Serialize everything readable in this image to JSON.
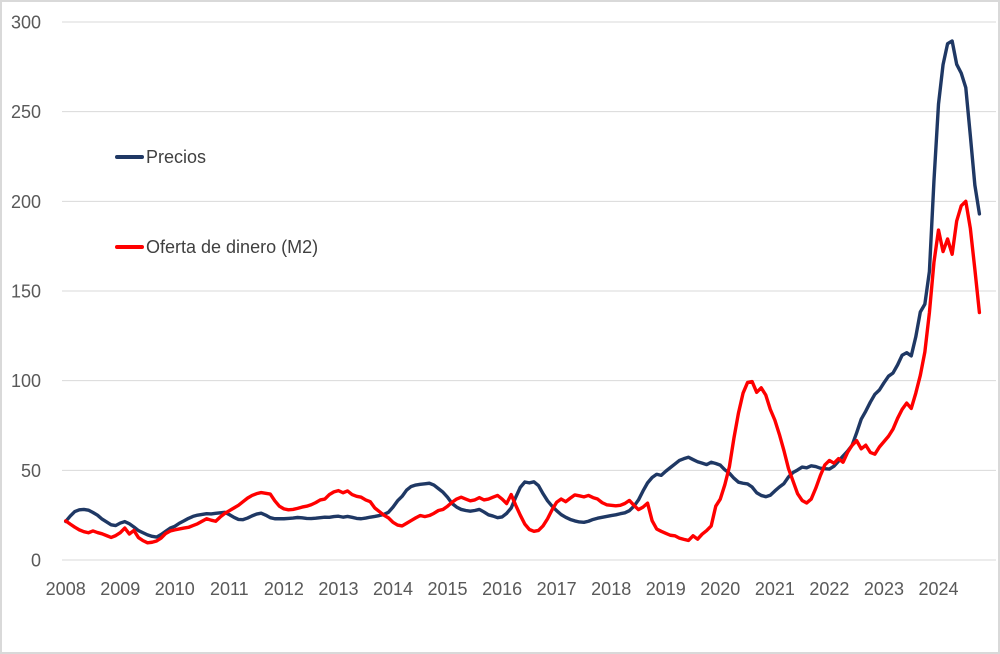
{
  "chart_data": {
    "type": "line",
    "title": "",
    "xlabel": "",
    "ylabel": "",
    "frequency": "monthly",
    "start": "2008-01",
    "end": "2024-10",
    "x_tick_labels": [
      "2008",
      "2009",
      "2010",
      "2011",
      "2012",
      "2013",
      "2014",
      "2015",
      "2016",
      "2017",
      "2018",
      "2019",
      "2020",
      "2021",
      "2022",
      "2023",
      "2024"
    ],
    "y_ticks": [
      0,
      50,
      100,
      150,
      200,
      250,
      300
    ],
    "ylim": [
      0,
      300
    ],
    "grid": "horizontal",
    "legend_position": "inside-top-left",
    "series": [
      {
        "name": "Precios",
        "color": "#1f3864",
        "values": [
          21.5,
          24.5,
          27.0,
          28.0,
          28.2,
          27.8,
          26.5,
          25.0,
          22.8,
          21.2,
          19.6,
          19.2,
          20.6,
          21.4,
          20.2,
          18.4,
          16.4,
          15.2,
          14.0,
          13.2,
          12.8,
          14.2,
          16.0,
          17.8,
          18.8,
          20.5,
          21.8,
          23.2,
          24.3,
          25.0,
          25.4,
          25.8,
          25.7,
          26.0,
          26.3,
          26.6,
          25.3,
          23.8,
          22.6,
          22.5,
          23.4,
          24.6,
          25.6,
          26.1,
          25.0,
          23.6,
          23.0,
          23.0,
          23.0,
          23.2,
          23.4,
          23.7,
          23.5,
          23.2,
          23.1,
          23.3,
          23.6,
          23.9,
          23.8,
          24.2,
          24.4,
          23.9,
          24.3,
          23.8,
          23.2,
          23.0,
          23.4,
          23.9,
          24.3,
          24.8,
          25.4,
          26.6,
          29.5,
          33.0,
          35.5,
          39.0,
          41.0,
          41.8,
          42.2,
          42.5,
          42.8,
          41.8,
          39.8,
          37.8,
          35.0,
          31.5,
          29.5,
          28.2,
          27.6,
          27.2,
          27.6,
          28.2,
          26.8,
          25.2,
          24.5,
          23.6,
          24.0,
          26.0,
          29.0,
          35.0,
          40.5,
          43.5,
          43.0,
          43.6,
          41.5,
          37.0,
          33.0,
          30.0,
          27.5,
          25.3,
          23.8,
          22.6,
          21.8,
          21.2,
          21.0,
          21.6,
          22.6,
          23.3,
          23.8,
          24.3,
          24.8,
          25.2,
          25.8,
          26.3,
          27.5,
          30.0,
          33.5,
          38.5,
          43.0,
          46.0,
          47.8,
          47.2,
          49.5,
          51.5,
          53.5,
          55.5,
          56.5,
          57.3,
          56.0,
          54.8,
          54.0,
          53.2,
          54.5,
          53.8,
          52.9,
          50.3,
          48.4,
          45.6,
          43.4,
          42.8,
          42.4,
          40.7,
          37.5,
          36.0,
          35.3,
          36.1,
          38.5,
          40.7,
          42.6,
          46.3,
          48.8,
          50.2,
          51.8,
          51.4,
          52.5,
          52.1,
          51.2,
          50.9,
          50.7,
          52.3,
          55.1,
          58.0,
          60.7,
          64.0,
          71.0,
          78.5,
          83.0,
          88.0,
          92.4,
          94.8,
          98.8,
          102.5,
          104.3,
          108.8,
          114.2,
          115.6,
          113.8,
          124.4,
          138.3,
          142.7,
          160.9,
          211.4,
          254.2,
          276.2,
          287.9,
          289.4,
          276.4,
          271.5,
          263.4,
          236.7,
          209.0,
          193.0
        ]
      },
      {
        "name": "Oferta de dinero (M2)",
        "color": "#ff0000",
        "values": [
          21.8,
          20.0,
          18.3,
          16.8,
          15.8,
          15.2,
          16.2,
          15.3,
          14.6,
          13.6,
          12.6,
          13.6,
          15.2,
          17.8,
          14.5,
          16.5,
          12.5,
          10.8,
          9.6,
          9.9,
          10.6,
          12.2,
          14.8,
          16.2,
          16.8,
          17.3,
          17.8,
          18.2,
          19.2,
          20.2,
          21.6,
          23.0,
          22.2,
          21.6,
          24.0,
          26.0,
          27.5,
          29.0,
          30.5,
          32.5,
          34.5,
          36.0,
          37.0,
          37.6,
          37.2,
          36.8,
          33.0,
          30.0,
          28.5,
          28.0,
          28.2,
          28.8,
          29.5,
          30.0,
          30.8,
          32.0,
          33.5,
          34.0,
          36.5,
          38.0,
          38.7,
          37.5,
          38.5,
          36.5,
          35.5,
          35.0,
          33.5,
          32.5,
          29.0,
          27.0,
          25.0,
          23.5,
          21.0,
          19.5,
          19.0,
          20.5,
          22.0,
          23.5,
          24.8,
          24.2,
          24.8,
          26.0,
          27.6,
          28.2,
          30.0,
          32.2,
          34.0,
          35.0,
          34.0,
          33.0,
          33.5,
          34.8,
          33.5,
          34.0,
          35.0,
          36.0,
          34.0,
          31.5,
          36.5,
          30.5,
          25.0,
          20.0,
          17.0,
          16.0,
          16.5,
          19.0,
          23.0,
          28.0,
          32.2,
          34.0,
          32.5,
          34.5,
          36.3,
          35.8,
          35.2,
          36.0,
          34.8,
          34.0,
          32.0,
          30.8,
          30.5,
          30.2,
          30.5,
          31.5,
          33.2,
          30.5,
          28.1,
          29.5,
          31.7,
          21.9,
          17.3,
          16.0,
          14.9,
          13.8,
          13.5,
          12.2,
          11.5,
          10.9,
          13.5,
          11.6,
          14.4,
          16.4,
          19.0,
          30.0,
          34.0,
          42.0,
          52.0,
          68.0,
          82.0,
          93.0,
          99.0,
          99.5,
          93.5,
          96.0,
          92.0,
          84.0,
          78.0,
          70.0,
          61.0,
          51.0,
          44.0,
          37.0,
          33.2,
          31.8,
          34.0,
          40.0,
          47.0,
          53.0,
          55.5,
          54.0,
          56.5,
          54.5,
          60.0,
          64.0,
          66.5,
          62.0,
          64.0,
          60.0,
          59.0,
          63.0,
          66.0,
          69.0,
          73.0,
          79.0,
          84.0,
          87.5,
          84.5,
          93.0,
          103.0,
          116.0,
          138.0,
          166.0,
          184.0,
          172.0,
          179.0,
          170.5,
          189.0,
          197.5,
          200.0,
          185.0,
          162.0,
          138.0
        ]
      }
    ]
  },
  "colors": {
    "background": "#ffffff",
    "frame_border": "#d9d9d9",
    "gridline": "#d9d9d9",
    "axis_text": "#595959",
    "legend_text": "#404040"
  }
}
